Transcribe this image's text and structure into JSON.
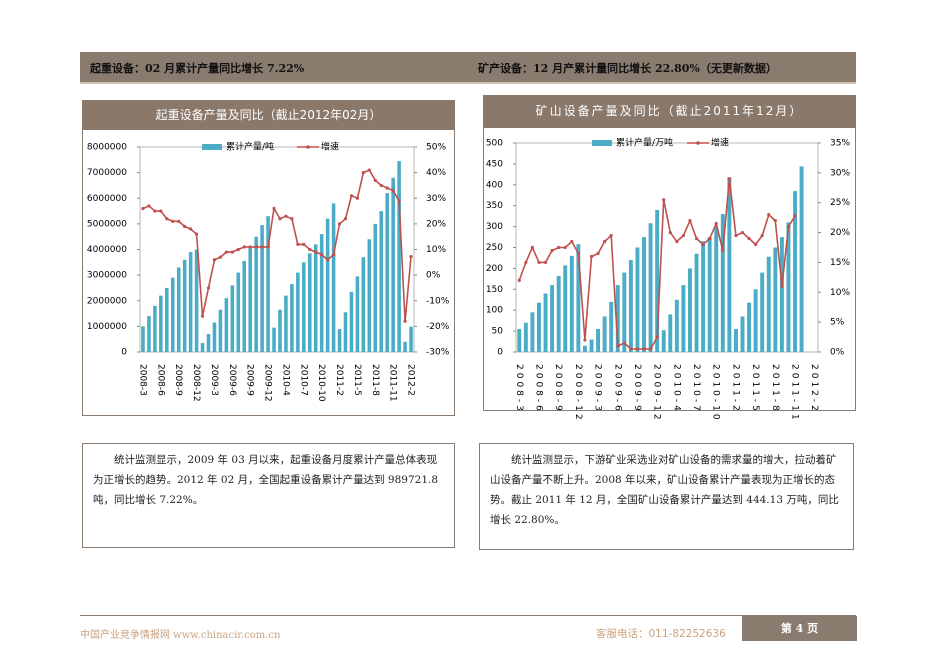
{
  "header": {
    "left": "起重设备：02 月累计产量同比增长 7.22%",
    "right": "矿产设备：12 月产累计量同比增长 22.80%（无更新数据）"
  },
  "chart_data": [
    {
      "type": "combo",
      "title": "起重设备产量及同比（截止2012年02月）",
      "categories": [
        "2008-3",
        null,
        null,
        "2008-6",
        null,
        null,
        "2008-9",
        null,
        null,
        "2008-12",
        null,
        null,
        "2009-3",
        null,
        null,
        "2009-6",
        null,
        null,
        "2009-9",
        null,
        null,
        "2009-12",
        null,
        null,
        "2010-4",
        null,
        null,
        "2010-7",
        null,
        null,
        "2010-10",
        null,
        null,
        "2011-2",
        null,
        null,
        "2011-5",
        null,
        null,
        "2011-8",
        null,
        null,
        "2011-11",
        null,
        null,
        "2012-2"
      ],
      "series": [
        {
          "name": "累计产量/吨",
          "type": "bar",
          "color": "#4bacc6",
          "values": [
            1000000,
            1400000,
            1800000,
            2200000,
            2500000,
            2900000,
            3300000,
            3600000,
            3900000,
            4000000,
            350000,
            700000,
            1150000,
            1650000,
            2100000,
            2600000,
            3100000,
            3550000,
            4050000,
            4500000,
            4950000,
            5300000,
            950000,
            1650000,
            2200000,
            2650000,
            3100000,
            3500000,
            3850000,
            4200000,
            4600000,
            5200000,
            5800000,
            900000,
            1550000,
            2350000,
            2950000,
            3700000,
            4400000,
            5000000,
            5500000,
            6200000,
            6800000,
            7450000,
            400000,
            989721.8
          ]
        },
        {
          "name": "增速",
          "type": "line",
          "axis": "y2",
          "color": "#c0504d",
          "values": [
            26,
            27,
            25,
            25,
            22,
            21,
            21,
            19,
            18,
            16,
            -16,
            -5,
            6,
            7,
            9,
            9,
            10,
            11,
            11,
            11,
            11,
            11,
            26,
            22,
            23,
            22,
            12,
            12,
            10,
            9,
            8,
            6,
            8,
            20,
            22,
            31,
            30,
            40,
            41,
            37,
            35,
            34,
            33,
            29,
            -18,
            7.22
          ]
        }
      ],
      "ylim": [
        0,
        8000000
      ],
      "yticks": [
        0,
        1000000,
        2000000,
        3000000,
        4000000,
        5000000,
        6000000,
        7000000,
        8000000
      ],
      "y2lim": [
        -30,
        50
      ],
      "y2ticks": [
        {
          "value": -30,
          "label": "-30%"
        },
        {
          "value": -20,
          "label": "-20%"
        },
        {
          "value": -10,
          "label": "-10%"
        },
        {
          "value": 0,
          "label": "0%"
        },
        {
          "value": 10,
          "label": "10%"
        },
        {
          "value": 20,
          "label": "20%"
        },
        {
          "value": 30,
          "label": "30%"
        },
        {
          "value": 40,
          "label": "40%"
        },
        {
          "value": 50,
          "label": "50%"
        }
      ]
    },
    {
      "type": "combo",
      "title": "矿山设备产量及同比（截止2011年12月）",
      "categories": [
        "2008-3",
        null,
        null,
        "2008-6",
        null,
        null,
        "2008-9",
        null,
        null,
        "2008-12",
        null,
        null,
        "2009-3",
        null,
        null,
        "2009-6",
        null,
        null,
        "2009-9",
        null,
        null,
        "2009-12",
        null,
        null,
        "2010-4",
        null,
        null,
        "2010-7",
        null,
        null,
        "2010-10",
        null,
        null,
        "2011-2",
        null,
        null,
        "2011-5",
        null,
        null,
        "2011-8",
        null,
        null,
        "2011-11",
        null,
        null,
        "2012-2"
      ],
      "series": [
        {
          "name": "累计产量/万吨",
          "type": "bar",
          "color": "#4bacc6",
          "values": [
            55,
            70,
            95,
            118,
            140,
            160,
            182,
            207,
            230,
            258,
            15,
            30,
            55,
            85,
            120,
            160,
            190,
            220,
            250,
            275,
            308,
            340,
            52,
            90,
            125,
            160,
            200,
            235,
            265,
            275,
            300,
            330,
            418,
            55,
            85,
            118,
            150,
            190,
            228,
            250,
            275,
            310,
            385,
            444.13,
            null,
            null
          ]
        },
        {
          "name": "增速",
          "type": "line",
          "axis": "y2",
          "color": "#c0504d",
          "values": [
            12,
            15,
            17.5,
            15,
            15,
            17,
            17.5,
            17.5,
            18.5,
            16.5,
            2,
            16,
            16.5,
            18.5,
            19.5,
            1,
            1.5,
            0.5,
            0.5,
            0.5,
            0.5,
            2.5,
            25.5,
            20,
            18.5,
            19.5,
            22,
            19,
            18,
            19,
            21.5,
            17,
            29,
            19.5,
            20,
            19,
            18,
            19.5,
            23,
            22,
            11,
            21,
            22.8,
            null,
            null,
            null
          ]
        }
      ],
      "ylim": [
        0,
        500
      ],
      "yticks": [
        0,
        50,
        100,
        150,
        200,
        250,
        300,
        350,
        400,
        450,
        500
      ],
      "y2lim": [
        0,
        35
      ],
      "y2ticks": [
        {
          "value": 0,
          "label": "0%"
        },
        {
          "value": 5,
          "label": "5%"
        },
        {
          "value": 10,
          "label": "10%"
        },
        {
          "value": 15,
          "label": "15%"
        },
        {
          "value": 20,
          "label": "20%"
        },
        {
          "value": 25,
          "label": "25%"
        },
        {
          "value": 30,
          "label": "30%"
        },
        {
          "value": 35,
          "label": "35%"
        }
      ]
    }
  ],
  "paragraphs": [
    "统计监测显示，2009 年 03 月以来，起重设备月度累计产量总体表现为正增长的趋势。2012 年 02 月，全国起重设备累计产量达到 989721.8 吨，同比增长 7.22%。",
    "统计监测显示，下游矿业采选业对矿山设备的需求量的增大，拉动着矿山设备产量不断上升。2008 年以来，矿山设备累计产量表现为正增长的态势。截止 2011 年 12 月，全国矿山设备累计产量达到 444.13 万吨，同比增长 22.80%。"
  ],
  "footer": {
    "site": "中国产业竞争情报网 www.chinacir.com.cn",
    "phone": "客服电话：011-82252636",
    "page": "第 4 页"
  }
}
